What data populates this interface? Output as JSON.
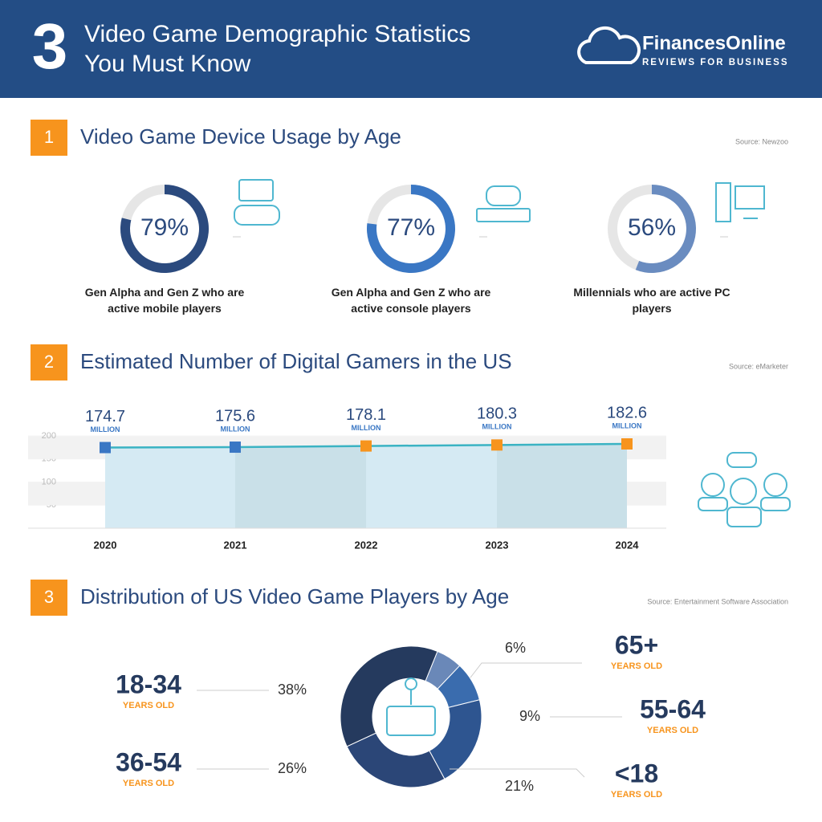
{
  "header": {
    "number": "3",
    "title_line1": "Video Game Demographic Statistics",
    "title_line2": "You Must Know",
    "brand": "FinancesOnline",
    "tagline": "REVIEWS FOR BUSINESS"
  },
  "chart_data": [
    {
      "type": "ring",
      "number": "1",
      "title": "Video Game Device Usage by Age",
      "source": "Source: Newzoo",
      "categories": [
        "Gen Alpha and Gen Z who are active mobile players",
        "Gen Alpha and Gen Z who are active console players",
        "Millennials who are active PC players"
      ],
      "values": [
        79,
        77,
        56
      ],
      "value_labels": [
        "79%",
        "77%",
        "56%"
      ],
      "colors": [
        "#2b4a7e",
        "#3a77c4",
        "#6a8cc0"
      ],
      "track_color": "#e6e6e6"
    },
    {
      "type": "area-line",
      "number": "2",
      "title": "Estimated Number of Digital Gamers in the US",
      "source": "Source: eMarketer",
      "categories": [
        "2020",
        "2021",
        "2022",
        "2023",
        "2024"
      ],
      "values": [
        174.7,
        175.6,
        178.1,
        180.3,
        182.6
      ],
      "unit": "MILLION",
      "color": "#3bb3c3",
      "point_colors": [
        "#3a77c4",
        "#3a77c4",
        "#f7941d",
        "#f7941d",
        "#f7941d"
      ],
      "ylim": [
        0,
        200
      ],
      "yticks": [
        50,
        100,
        150,
        200
      ],
      "grid": true
    },
    {
      "type": "donut",
      "number": "3",
      "title": "Distribution of US Video Game Players by Age",
      "source": "Source: Entertainment Software Association",
      "categories": [
        "65+",
        "55-64",
        "<18",
        "36-54",
        "18-34"
      ],
      "values": [
        6,
        9,
        21,
        26,
        38
      ],
      "value_labels": [
        "6%",
        "9%",
        "21%",
        "26%",
        "38%"
      ],
      "unit": "YEARS OLD",
      "colors": [
        "#6a88b8",
        "#3a6cae",
        "#2e5590",
        "#2b4677",
        "#253a5e"
      ]
    }
  ]
}
